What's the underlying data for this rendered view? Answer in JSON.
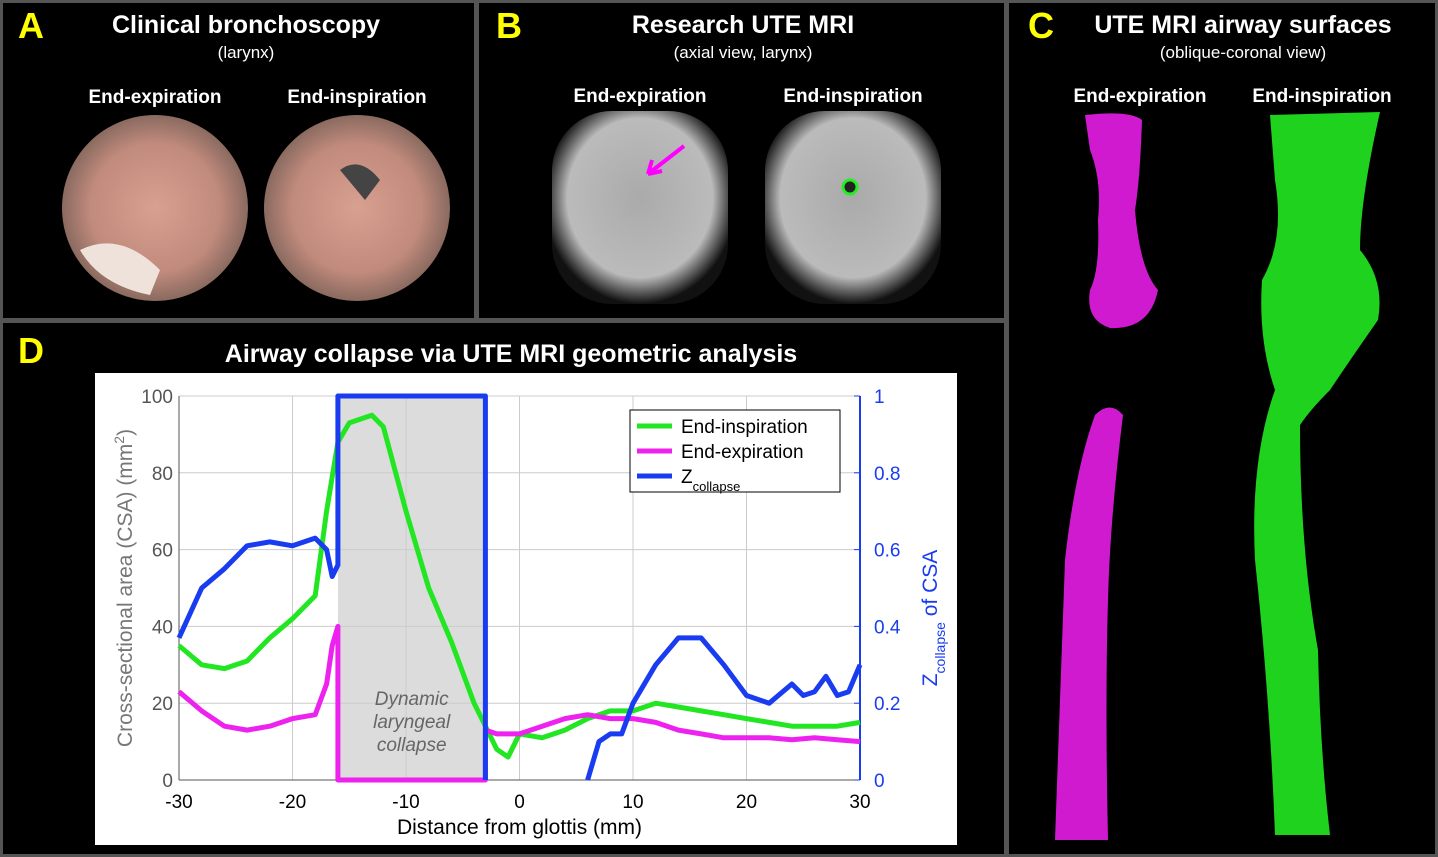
{
  "panels": {
    "a": {
      "letter": "A",
      "title": "Clinical bronchoscopy",
      "subtitle": "(larynx)",
      "left": "End-expiration",
      "right": "End-inspiration"
    },
    "b": {
      "letter": "B",
      "title": "Research UTE MRI",
      "subtitle": "(axial view, larynx)",
      "left": "End-expiration",
      "right": "End-inspiration"
    },
    "c": {
      "letter": "C",
      "title": "UTE MRI airway surfaces",
      "subtitle": "(oblique-coronal view)",
      "left": "End-expiration",
      "right": "End-inspiration"
    },
    "d": {
      "letter": "D"
    }
  },
  "chart_data": {
    "type": "line",
    "title": "Airway collapse via UTE MRI geometric analysis",
    "xlabel": "Distance from glottis (mm)",
    "ylabel": [
      "Cross-sectional area (CSA) (mm",
      "2",
      ")"
    ],
    "y2label": [
      "Z",
      "collapse",
      " of CSA"
    ],
    "xlim": [
      -30,
      30
    ],
    "xticks": [
      -30,
      -20,
      -10,
      0,
      10,
      20,
      30
    ],
    "ylim": [
      0,
      100
    ],
    "yticks": [
      0,
      20,
      40,
      60,
      80,
      100
    ],
    "y2lim": [
      0,
      1
    ],
    "y2ticks": [
      0,
      0.2,
      0.4,
      0.6,
      0.8,
      1
    ],
    "grid": true,
    "legend": "upper right",
    "region": [
      -16,
      -3
    ],
    "annotation": [
      "Dynamic",
      "laryngeal",
      "collapse"
    ],
    "series": [
      {
        "name": "End-inspiration",
        "color": "#22e622",
        "x": [
          -30,
          -28,
          -26,
          -24,
          -22,
          -20,
          -18,
          -17,
          -16,
          -15,
          -14,
          -13,
          -12,
          -10,
          -8,
          -6,
          -4,
          -2,
          -1,
          0,
          2,
          4,
          6,
          8,
          10,
          12,
          14,
          16,
          18,
          20,
          22,
          24,
          26,
          28,
          30
        ],
        "values": [
          35,
          30,
          29,
          31,
          37,
          42,
          48,
          70,
          88,
          93,
          94,
          95,
          92,
          70,
          50,
          36,
          20,
          8,
          6,
          12,
          11,
          13,
          16,
          18,
          18,
          20,
          19,
          18,
          17,
          16,
          15,
          14,
          14,
          14,
          15
        ]
      },
      {
        "name": "End-expiration",
        "color": "#ee22ee",
        "x": [
          -30,
          -28,
          -26,
          -24,
          -22,
          -20,
          -18,
          -17,
          -16.5,
          -16,
          -16,
          -3,
          -3,
          -2,
          0,
          2,
          4,
          6,
          8,
          10,
          12,
          14,
          16,
          18,
          20,
          22,
          24,
          26,
          28,
          30
        ],
        "values": [
          23,
          18,
          14,
          13,
          14,
          16,
          17,
          25,
          35,
          40,
          0,
          0,
          13,
          12,
          12,
          14,
          16,
          17,
          16,
          16,
          15,
          13,
          12,
          11,
          11,
          11,
          10.5,
          11,
          10.5,
          10
        ]
      },
      {
        "name": "Z",
        "name_sub": "collapse",
        "color": "#1a3cf0",
        "axis": "y2",
        "x": [
          -30,
          -28,
          -26,
          -24,
          -22,
          -20,
          -18,
          -17,
          -16.5,
          -16,
          -16,
          -3,
          -3,
          0,
          6,
          7,
          8,
          9,
          10,
          12,
          14,
          16,
          18,
          20,
          22,
          24,
          25,
          26,
          27,
          28,
          29,
          30
        ],
        "values": [
          0.37,
          0.5,
          0.55,
          0.61,
          0.62,
          0.61,
          0.63,
          0.6,
          0.53,
          0.56,
          1,
          1,
          0,
          null,
          0,
          0.1,
          0.12,
          0.12,
          0.2,
          0.3,
          0.37,
          0.37,
          0.3,
          0.22,
          0.2,
          0.25,
          0.22,
          0.23,
          0.27,
          0.22,
          0.23,
          0.3
        ]
      }
    ]
  }
}
